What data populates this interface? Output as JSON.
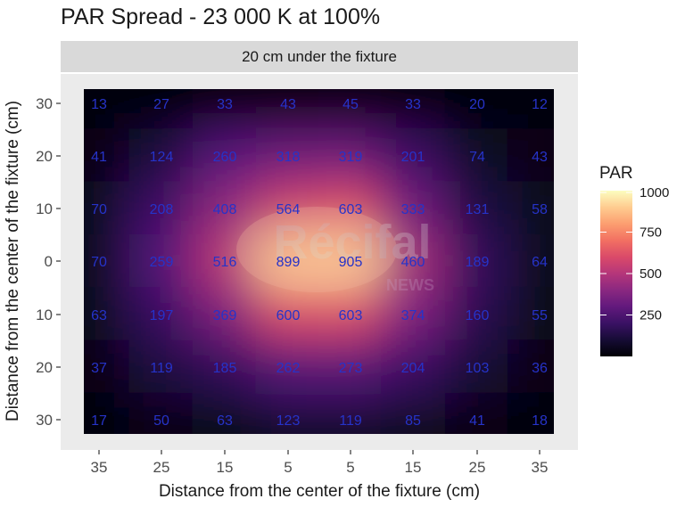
{
  "title": "PAR Spread - 23 000 K at 100%",
  "watermark": {
    "text": "Récifal",
    "subtext": "NEWS"
  },
  "chart_data": {
    "type": "heatmap",
    "title": "PAR Spread - 23 000 K at 100%",
    "facet_label": "20 cm under the fixture",
    "xlabel": "Distance from the center of the fixture (cm)",
    "ylabel": "Distance from the center of the fixture (cm)",
    "x_tick_labels": [
      "35",
      "25",
      "15",
      "5",
      "5",
      "15",
      "25",
      "35"
    ],
    "y_tick_labels": [
      "30",
      "20",
      "10",
      "0",
      "10",
      "20",
      "30"
    ],
    "values": [
      [
        13,
        27,
        33,
        43,
        45,
        33,
        20,
        12
      ],
      [
        41,
        124,
        260,
        318,
        319,
        201,
        74,
        43
      ],
      [
        70,
        208,
        408,
        564,
        603,
        333,
        131,
        58
      ],
      [
        70,
        259,
        516,
        899,
        905,
        460,
        189,
        64
      ],
      [
        63,
        197,
        369,
        600,
        603,
        374,
        160,
        55
      ],
      [
        37,
        119,
        185,
        262,
        273,
        204,
        103,
        36
      ],
      [
        17,
        50,
        63,
        123,
        119,
        85,
        41,
        18
      ]
    ],
    "color_scale": "magma",
    "legend": {
      "title": "PAR",
      "ticks": [
        250,
        500,
        750,
        1000
      ],
      "range": [
        0,
        1000
      ],
      "placement": "right"
    }
  }
}
